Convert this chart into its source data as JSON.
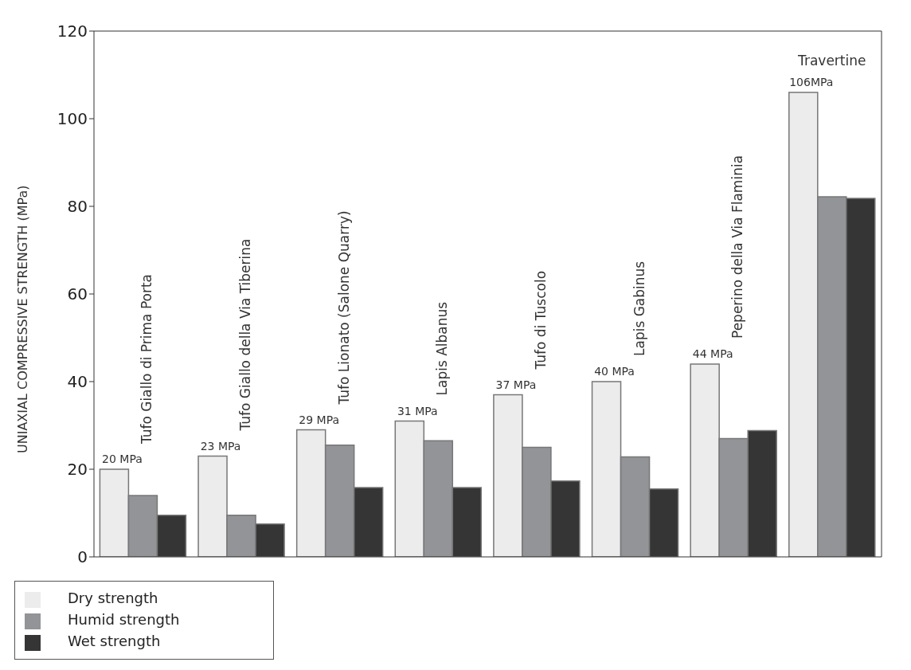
{
  "chart_data": {
    "type": "bar",
    "ylabel": "UNIAXIAL COMPRESSIVE STRENGTH (MPa)",
    "categories": [
      "Tufo Giallo di Prima Porta",
      "Tufo Giallo della Via Tiberina",
      "Tufo Lionato (Salone Quarry)",
      "Lapis Albanus",
      "Tufo di Tuscolo",
      "Lapis Gabinus",
      "Peperino della Via Flaminia",
      "Travertine"
    ],
    "series": [
      {
        "name": "Dry strength",
        "color": "#ececec",
        "values": [
          20,
          23,
          29,
          31,
          37,
          40,
          44,
          106
        ],
        "value_labels": [
          "20 MPa",
          "23 MPa",
          "29 MPa",
          "31 MPa",
          "37 MPa",
          "40 MPa",
          "44 MPa",
          "106MPa"
        ]
      },
      {
        "name": "Humid strength",
        "color": "#939498",
        "values": [
          14,
          9.5,
          25.5,
          26.5,
          25,
          22.8,
          27,
          82.2
        ]
      },
      {
        "name": "Wet strength",
        "color": "#353535",
        "values": [
          9.5,
          7.5,
          15.8,
          15.8,
          17.3,
          15.5,
          28.8,
          81.8
        ]
      }
    ],
    "ylim": [
      0,
      120
    ],
    "yticks": [
      0,
      20,
      40,
      60,
      80,
      100,
      120
    ],
    "grid": false,
    "legend": "bottom left"
  }
}
